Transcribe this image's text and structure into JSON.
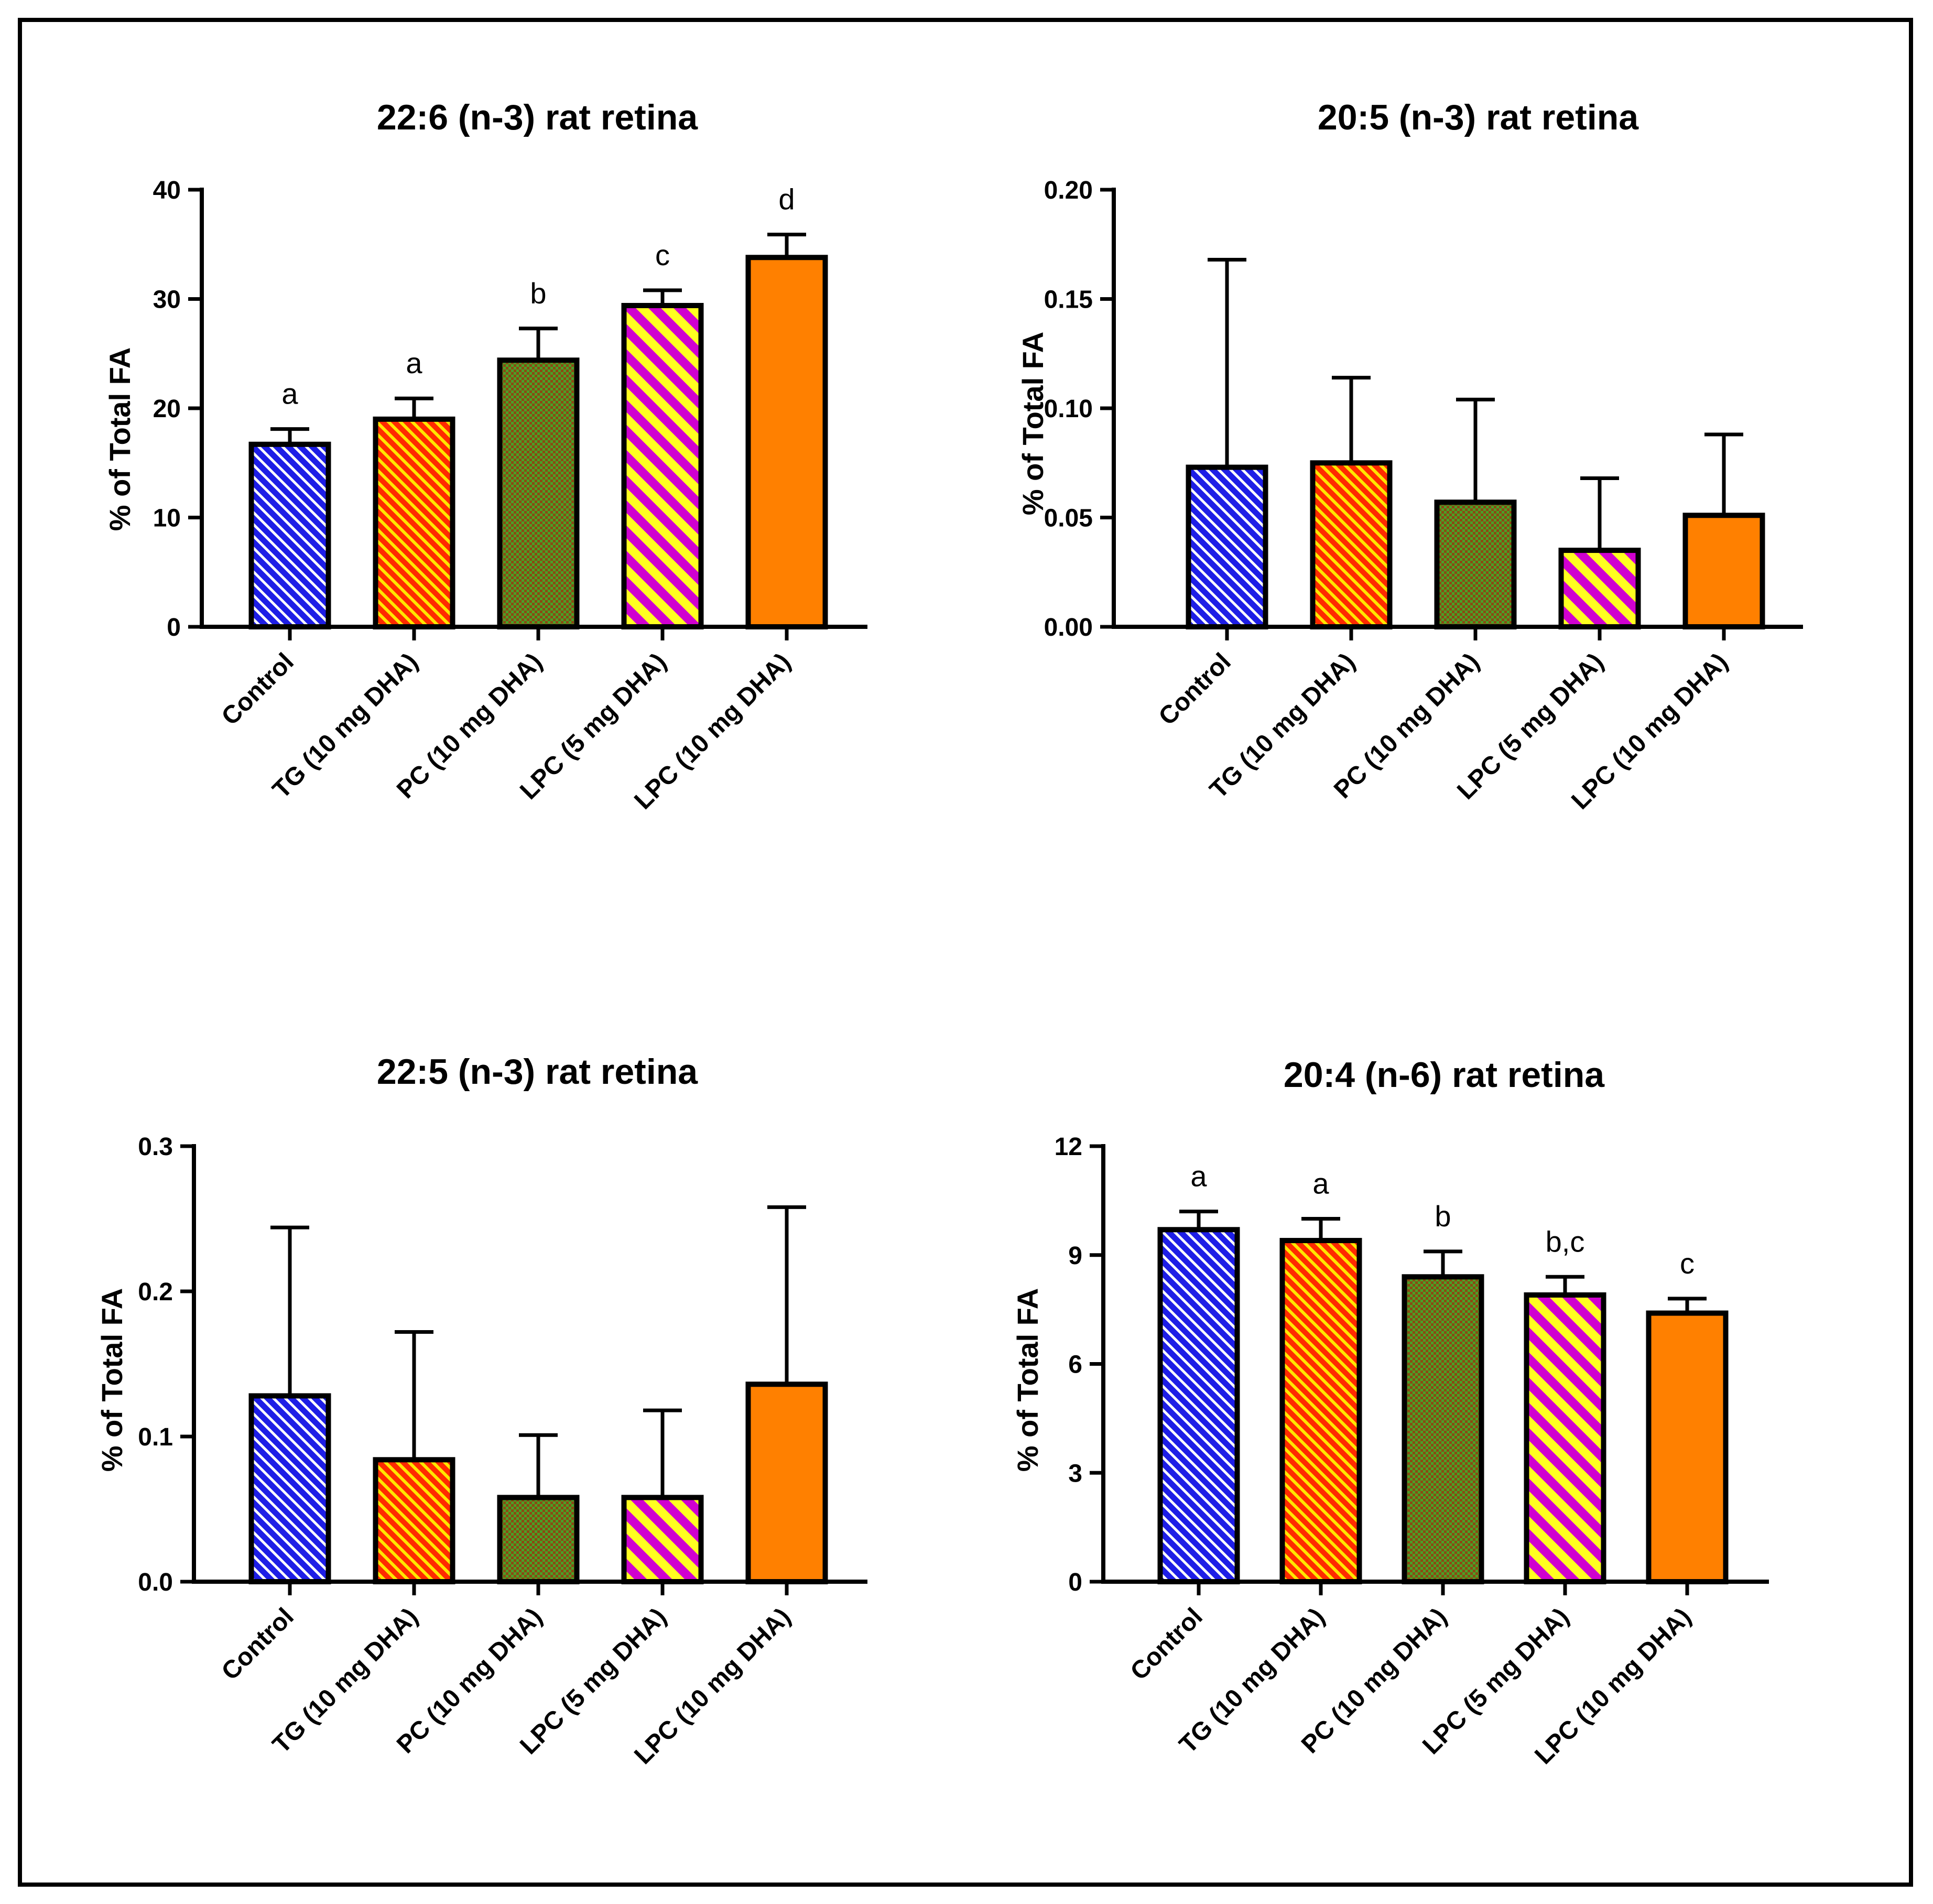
{
  "chart_data": [
    {
      "type": "bar",
      "title": "22:6 (n-3) rat retina",
      "xlabel": "",
      "ylabel": "% of Total FA",
      "ylim": [
        0,
        40
      ],
      "yticks": [
        0,
        10,
        20,
        30,
        40
      ],
      "ytick_labels": [
        "0",
        "10",
        "20",
        "30",
        "40"
      ],
      "categories": [
        "Control",
        "TG (10 mg DHA)",
        "PC (10 mg DHA)",
        "LPC (5 mg DHA)",
        "LPC (10 mg DHA)"
      ],
      "values": [
        16.7,
        19.0,
        24.4,
        29.4,
        33.8
      ],
      "errors": [
        1.4,
        1.9,
        2.9,
        1.4,
        2.1
      ],
      "significance": [
        "a",
        "a",
        "b",
        "c",
        "d"
      ]
    },
    {
      "type": "bar",
      "title": "20:5 (n-3) rat retina",
      "xlabel": "",
      "ylabel": "% of Total FA",
      "ylim": [
        0,
        0.2
      ],
      "yticks": [
        0,
        0.05,
        0.1,
        0.15,
        0.2
      ],
      "ytick_labels": [
        "0.00",
        "0.05",
        "0.10",
        "0.15",
        "0.20"
      ],
      "categories": [
        "Control",
        "TG (10 mg DHA)",
        "PC (10 mg DHA)",
        "LPC (5 mg DHA)",
        "LPC (10 mg DHA)"
      ],
      "values": [
        0.073,
        0.075,
        0.057,
        0.035,
        0.051
      ],
      "errors": [
        0.095,
        0.039,
        0.047,
        0.033,
        0.037
      ],
      "significance": [
        "",
        "",
        "",
        "",
        ""
      ]
    },
    {
      "type": "bar",
      "title": "22:5 (n-3) rat retina",
      "xlabel": "",
      "ylabel": "% of Total FA",
      "ylim": [
        0,
        0.3
      ],
      "yticks": [
        0,
        0.1,
        0.2,
        0.3
      ],
      "ytick_labels": [
        "0.0",
        "0.1",
        "0.2",
        "0.3"
      ],
      "categories": [
        "Control",
        "TG (10 mg DHA)",
        "PC (10 mg DHA)",
        "LPC (5 mg DHA)",
        "LPC (10 mg DHA)"
      ],
      "values": [
        0.128,
        0.084,
        0.058,
        0.058,
        0.136
      ],
      "errors": [
        0.116,
        0.088,
        0.043,
        0.06,
        0.122
      ],
      "significance": [
        "",
        "",
        "",
        "",
        ""
      ]
    },
    {
      "type": "bar",
      "title": "20:4 (n-6) rat retina",
      "xlabel": "",
      "ylabel": "% of Total FA",
      "ylim": [
        0,
        12
      ],
      "yticks": [
        0,
        3,
        6,
        9,
        12
      ],
      "ytick_labels": [
        "0",
        "3",
        "6",
        "9",
        "12"
      ],
      "categories": [
        "Control",
        "TG (10 mg DHA)",
        "PC (10 mg DHA)",
        "LPC (5 mg DHA)",
        "LPC (10 mg DHA)"
      ],
      "values": [
        9.7,
        9.4,
        8.4,
        7.9,
        7.4
      ],
      "errors": [
        0.5,
        0.6,
        0.7,
        0.5,
        0.4
      ],
      "significance": [
        "a",
        "a",
        "b",
        "b,c",
        "c"
      ]
    }
  ],
  "bar_styles": [
    {
      "name": "Control",
      "fill": "#1e1ee6",
      "stripe": "#ffffff",
      "pattern": "diagonal-thin"
    },
    {
      "name": "TG (10 mg DHA)",
      "fill": "#ff2a00",
      "stripe": "#ffe600",
      "pattern": "diagonal-thin"
    },
    {
      "name": "PC (10 mg DHA)",
      "fill": "#8a4a12",
      "stripe": "#4aa028",
      "pattern": "checker"
    },
    {
      "name": "LPC (5 mg DHA)",
      "fill": "#d000d0",
      "stripe": "#ffff20",
      "pattern": "diagonal-wide"
    },
    {
      "name": "LPC (10 mg DHA)",
      "fill": "#ff8000",
      "stripe": "#ff8000",
      "pattern": "solid"
    }
  ]
}
